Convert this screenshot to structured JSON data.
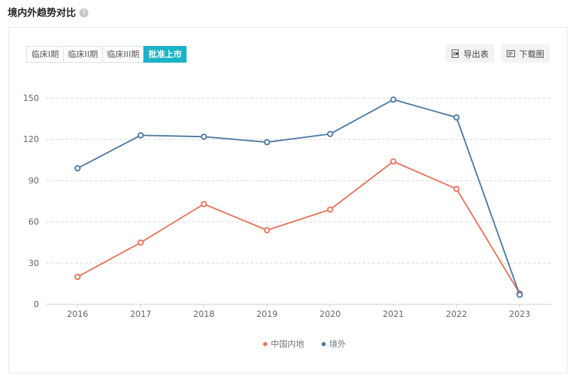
{
  "header": {
    "title": "境内外趋势对比",
    "help_icon": "?"
  },
  "tabs": [
    {
      "label": "临床I期",
      "active": false
    },
    {
      "label": "临床II期",
      "active": false
    },
    {
      "label": "临床III期",
      "active": false
    },
    {
      "label": "批准上市",
      "active": true
    }
  ],
  "toolbar": {
    "export_label": "导出表",
    "download_label": "下载图"
  },
  "colors": {
    "mainland": "#e8735a",
    "overseas": "#4d7aa0",
    "accent": "#1ab3c8"
  },
  "chart_data": {
    "type": "line",
    "x": [
      "2016",
      "2017",
      "2018",
      "2019",
      "2020",
      "2021",
      "2022",
      "2023"
    ],
    "ylim": [
      0,
      150
    ],
    "yticks": [
      0,
      30,
      60,
      90,
      120,
      150
    ],
    "grid": true,
    "legend_position": "bottom-center",
    "series": [
      {
        "name": "中国内地",
        "color": "#e8735a",
        "values": [
          20,
          45,
          73,
          54,
          69,
          104,
          84,
          8
        ]
      },
      {
        "name": "境外",
        "color": "#4d7aa0",
        "values": [
          99,
          123,
          122,
          118,
          124,
          149,
          136,
          7
        ]
      }
    ]
  }
}
